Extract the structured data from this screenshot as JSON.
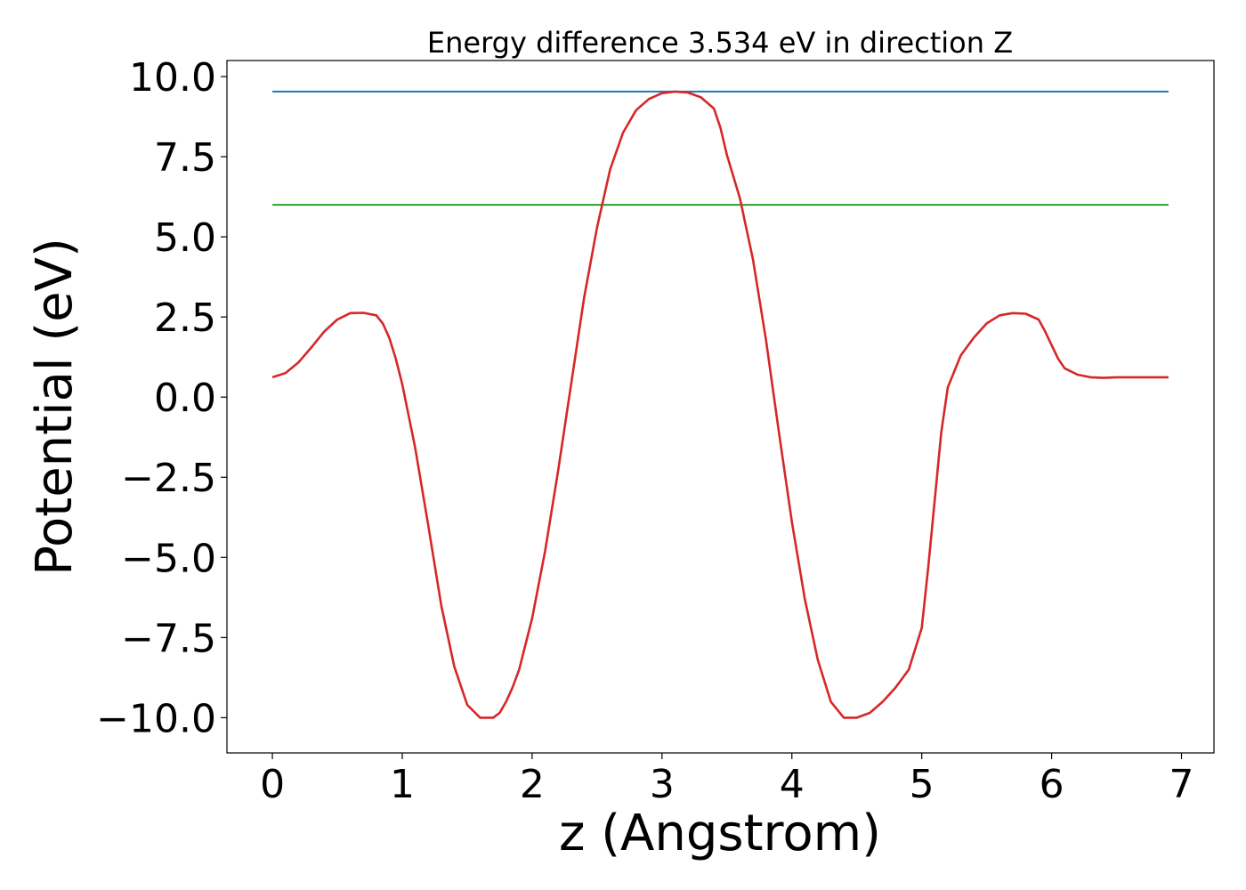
{
  "chart_data": {
    "type": "line",
    "title": "Energy difference 3.534 eV in direction Z",
    "xlabel": "z (Angstrom)",
    "ylabel": "Potential (eV)",
    "xlim": [
      -0.35,
      7.25
    ],
    "ylim": [
      -11.1,
      10.5
    ],
    "xticks": [
      0,
      1,
      2,
      3,
      4,
      5,
      6,
      7
    ],
    "xtick_labels": [
      "0",
      "1",
      "2",
      "3",
      "4",
      "5",
      "6",
      "7"
    ],
    "yticks": [
      -10.0,
      -7.5,
      -5.0,
      -2.5,
      0.0,
      2.5,
      5.0,
      7.5,
      10.0
    ],
    "ytick_labels": [
      "−10.0",
      "−7.5",
      "−5.0",
      "−2.5",
      "0.0",
      "2.5",
      "5.0",
      "7.5",
      "10.0"
    ],
    "grid": false,
    "series": [
      {
        "color": "#1f77b4",
        "x": [
          0.0,
          6.9
        ],
        "y": [
          9.53,
          9.53
        ]
      },
      {
        "color": "#2ca02c",
        "x": [
          0.0,
          6.9
        ],
        "y": [
          6.0,
          6.0
        ]
      },
      {
        "color": "#d62728",
        "x": [
          0.0,
          0.1,
          0.2,
          0.3,
          0.4,
          0.5,
          0.6,
          0.7,
          0.8,
          0.85,
          0.9,
          0.95,
          1.0,
          1.1,
          1.2,
          1.3,
          1.4,
          1.5,
          1.6,
          1.7,
          1.75,
          1.8,
          1.85,
          1.9,
          2.0,
          2.1,
          2.2,
          2.3,
          2.4,
          2.5,
          2.6,
          2.7,
          2.8,
          2.9,
          3.0,
          3.1,
          3.2,
          3.3,
          3.4,
          3.45,
          3.5,
          3.6,
          3.7,
          3.8,
          3.9,
          4.0,
          4.1,
          4.2,
          4.3,
          4.4,
          4.5,
          4.6,
          4.7,
          4.8,
          4.9,
          5.0,
          5.05,
          5.1,
          5.15,
          5.2,
          5.3,
          5.4,
          5.5,
          5.6,
          5.7,
          5.8,
          5.9,
          5.95,
          6.0,
          6.05,
          6.1,
          6.2,
          6.3,
          6.4,
          6.5,
          6.6,
          6.7,
          6.8,
          6.9
        ],
        "y": [
          0.62,
          0.75,
          1.08,
          1.55,
          2.05,
          2.42,
          2.62,
          2.63,
          2.55,
          2.3,
          1.85,
          1.2,
          0.4,
          -1.6,
          -4.0,
          -6.5,
          -8.4,
          -9.6,
          -10.0,
          -10.0,
          -9.85,
          -9.5,
          -9.05,
          -8.5,
          -6.9,
          -4.8,
          -2.3,
          0.4,
          3.1,
          5.3,
          7.1,
          8.25,
          8.95,
          9.3,
          9.48,
          9.53,
          9.5,
          9.35,
          9.0,
          8.4,
          7.55,
          6.2,
          4.3,
          1.8,
          -1.1,
          -3.9,
          -6.3,
          -8.2,
          -9.5,
          -10.0,
          -10.0,
          -9.85,
          -9.5,
          -9.05,
          -8.5,
          -7.2,
          -5.3,
          -3.2,
          -1.1,
          0.3,
          1.3,
          1.85,
          2.3,
          2.55,
          2.62,
          2.6,
          2.42,
          2.05,
          1.62,
          1.2,
          0.9,
          0.7,
          0.62,
          0.6,
          0.62,
          0.62,
          0.62,
          0.62,
          0.62
        ]
      }
    ]
  }
}
